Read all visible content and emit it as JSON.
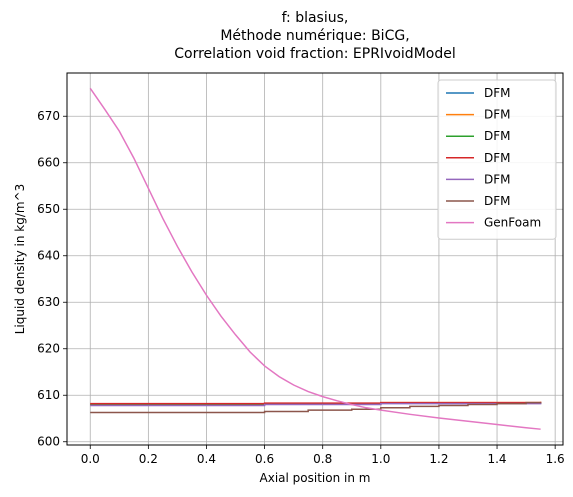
{
  "chart_data": {
    "type": "line",
    "title": [
      "f: blasius,",
      "Méthode numérique: BiCG,",
      "Correlation void fraction: EPRIvoidModel"
    ],
    "xlabel": "Axial position in m",
    "ylabel": "Liquid density in kg/m^3",
    "xlim": [
      -0.08,
      1.627
    ],
    "ylim": [
      599.3,
      679.3
    ],
    "xticks": [
      0.0,
      0.2,
      0.4,
      0.6,
      0.8,
      1.0,
      1.2,
      1.4,
      1.6
    ],
    "yticks": [
      600,
      610,
      620,
      630,
      640,
      650,
      660,
      670
    ],
    "grid": true,
    "legend_position": "top-right",
    "series": [
      {
        "name": "DFM",
        "color": "#1f77b4",
        "step": true,
        "x": [
          0.0,
          0.6,
          1.0,
          1.55
        ],
        "y": [
          608.0,
          608.1,
          608.3,
          608.5
        ]
      },
      {
        "name": "DFM",
        "color": "#ff7f0e",
        "step": true,
        "x": [
          0.0,
          0.6,
          1.0,
          1.55
        ],
        "y": [
          608.1,
          608.2,
          608.4,
          608.6
        ]
      },
      {
        "name": "DFM",
        "color": "#2ca02c",
        "step": true,
        "x": [
          0.0,
          0.6,
          1.0,
          1.55
        ],
        "y": [
          608.0,
          608.1,
          608.3,
          608.5
        ]
      },
      {
        "name": "DFM",
        "color": "#d62728",
        "step": true,
        "x": [
          0.0,
          0.6,
          1.0,
          1.55
        ],
        "y": [
          608.2,
          608.3,
          608.4,
          608.6
        ]
      },
      {
        "name": "DFM",
        "color": "#9467bd",
        "step": true,
        "x": [
          0.0,
          0.6,
          1.0,
          1.55
        ],
        "y": [
          607.8,
          608.0,
          608.2,
          608.4
        ]
      },
      {
        "name": "DFM",
        "color": "#8c564b",
        "step": true,
        "x": [
          0.0,
          0.6,
          0.75,
          0.9,
          1.0,
          1.1,
          1.2,
          1.3,
          1.4,
          1.5,
          1.55
        ],
        "y": [
          606.3,
          606.5,
          606.8,
          607.0,
          607.3,
          607.6,
          607.8,
          608.0,
          608.2,
          608.4,
          608.5
        ]
      },
      {
        "name": "GenFoam",
        "color": "#e377c2",
        "step": false,
        "x": [
          0.0,
          0.05,
          0.1,
          0.15,
          0.2,
          0.25,
          0.3,
          0.35,
          0.4,
          0.45,
          0.5,
          0.55,
          0.6,
          0.65,
          0.7,
          0.75,
          0.8,
          0.85,
          0.9,
          0.95,
          1.0,
          1.1,
          1.2,
          1.3,
          1.4,
          1.5,
          1.55
        ],
        "y": [
          676.0,
          671.5,
          666.8,
          661.0,
          654.5,
          648.0,
          642.0,
          636.5,
          631.5,
          627.0,
          623.0,
          619.3,
          616.3,
          614.0,
          612.2,
          610.8,
          609.7,
          608.8,
          608.0,
          607.3,
          606.8,
          605.9,
          605.1,
          604.4,
          603.7,
          603.0,
          602.7
        ]
      }
    ]
  }
}
